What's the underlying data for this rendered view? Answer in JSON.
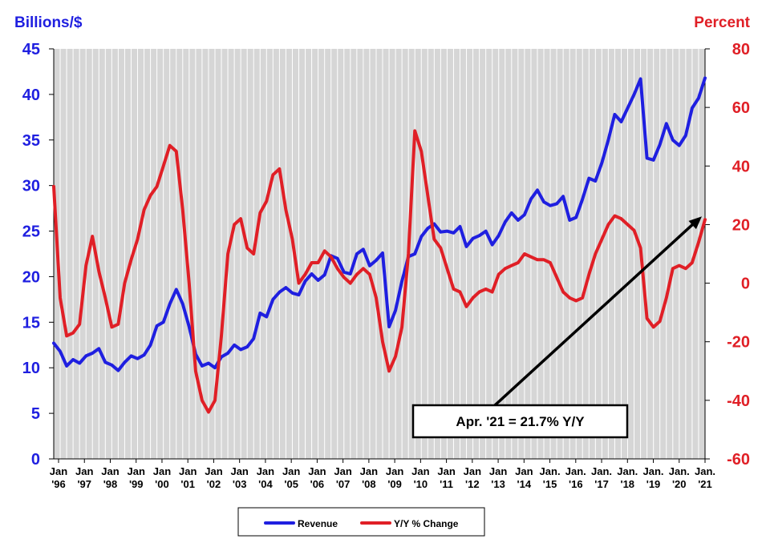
{
  "chart_data": {
    "type": "line",
    "left_axis": {
      "title": "Billions/$",
      "ticks": [
        "0",
        "5",
        "10",
        "15",
        "20",
        "25",
        "30",
        "35",
        "40",
        "45"
      ],
      "range": [
        0,
        45
      ],
      "color": "#1f1fe0"
    },
    "right_axis": {
      "title": "Percent",
      "ticks": [
        "-60",
        "-40",
        "-20",
        "0",
        "20",
        "40",
        "60",
        "80"
      ],
      "range": [
        -60,
        80
      ],
      "color": "#e01f26"
    },
    "x_labels": [
      [
        "Jan",
        "'96"
      ],
      [
        "Jan",
        "'97"
      ],
      [
        "Jan",
        "'98"
      ],
      [
        "Jan",
        "'99"
      ],
      [
        "Jan",
        "'00"
      ],
      [
        "Jan",
        "'01"
      ],
      [
        "Jan",
        "'02"
      ],
      [
        "Jan",
        "'03"
      ],
      [
        "Jan",
        "'04"
      ],
      [
        "Jan",
        "'05"
      ],
      [
        "Jan",
        "'06"
      ],
      [
        "Jan",
        "'07"
      ],
      [
        "Jan",
        "'08"
      ],
      [
        "Jan",
        "'09"
      ],
      [
        "Jan",
        "'10"
      ],
      [
        "Jan",
        "'11"
      ],
      [
        "Jan",
        "'12"
      ],
      [
        "Jan",
        "'13"
      ],
      [
        "Jan",
        "'14"
      ],
      [
        "Jan.",
        "'15"
      ],
      [
        "Jan.",
        "'16"
      ],
      [
        "Jan.",
        "'17"
      ],
      [
        "Jan.",
        "'18"
      ],
      [
        "Jan.",
        "'19"
      ],
      [
        "Jan.",
        "'20"
      ],
      [
        "Jan.",
        "'21"
      ]
    ],
    "x_range": [
      "1996-01",
      "2021-04"
    ],
    "grid": true,
    "legend_position": "bottom-center",
    "series": [
      {
        "name": "Revenue",
        "axis": "left",
        "color": "#1f1fe0",
        "points": [
          [
            "1996-01",
            12.7
          ],
          [
            "1996-04",
            11.8
          ],
          [
            "1996-07",
            10.2
          ],
          [
            "1996-10",
            10.9
          ],
          [
            "1997-01",
            10.5
          ],
          [
            "1997-04",
            11.3
          ],
          [
            "1997-07",
            11.6
          ],
          [
            "1997-10",
            12.1
          ],
          [
            "1998-01",
            10.6
          ],
          [
            "1998-04",
            10.3
          ],
          [
            "1998-07",
            9.7
          ],
          [
            "1998-10",
            10.6
          ],
          [
            "1999-01",
            11.3
          ],
          [
            "1999-04",
            11.0
          ],
          [
            "1999-07",
            11.4
          ],
          [
            "1999-10",
            12.5
          ],
          [
            "2000-01",
            14.6
          ],
          [
            "2000-04",
            15.0
          ],
          [
            "2000-07",
            17.0
          ],
          [
            "2000-10",
            18.6
          ],
          [
            "2001-01",
            17.0
          ],
          [
            "2001-04",
            14.5
          ],
          [
            "2001-07",
            11.5
          ],
          [
            "2001-10",
            10.2
          ],
          [
            "2002-01",
            10.5
          ],
          [
            "2002-04",
            10.0
          ],
          [
            "2002-07",
            11.2
          ],
          [
            "2002-10",
            11.6
          ],
          [
            "2003-01",
            12.5
          ],
          [
            "2003-04",
            12.0
          ],
          [
            "2003-07",
            12.3
          ],
          [
            "2003-10",
            13.2
          ],
          [
            "2004-01",
            16.0
          ],
          [
            "2004-04",
            15.6
          ],
          [
            "2004-07",
            17.5
          ],
          [
            "2004-10",
            18.3
          ],
          [
            "2005-01",
            18.8
          ],
          [
            "2005-04",
            18.2
          ],
          [
            "2005-07",
            18.0
          ],
          [
            "2005-10",
            19.5
          ],
          [
            "2006-01",
            20.3
          ],
          [
            "2006-04",
            19.6
          ],
          [
            "2006-07",
            20.2
          ],
          [
            "2006-10",
            22.3
          ],
          [
            "2007-01",
            22.0
          ],
          [
            "2007-04",
            20.5
          ],
          [
            "2007-07",
            20.3
          ],
          [
            "2007-10",
            22.5
          ],
          [
            "2008-01",
            23.0
          ],
          [
            "2008-04",
            21.2
          ],
          [
            "2008-07",
            21.8
          ],
          [
            "2008-10",
            22.6
          ],
          [
            "2009-01",
            14.5
          ],
          [
            "2009-04",
            16.3
          ],
          [
            "2009-07",
            19.5
          ],
          [
            "2009-10",
            22.2
          ],
          [
            "2010-01",
            22.5
          ],
          [
            "2010-04",
            24.4
          ],
          [
            "2010-07",
            25.3
          ],
          [
            "2010-10",
            25.8
          ],
          [
            "2011-01",
            24.9
          ],
          [
            "2011-04",
            25.0
          ],
          [
            "2011-07",
            24.8
          ],
          [
            "2011-10",
            25.5
          ],
          [
            "2012-01",
            23.3
          ],
          [
            "2012-04",
            24.2
          ],
          [
            "2012-07",
            24.5
          ],
          [
            "2012-10",
            25.0
          ],
          [
            "2013-01",
            23.5
          ],
          [
            "2013-04",
            24.5
          ],
          [
            "2013-07",
            26.0
          ],
          [
            "2013-10",
            27.0
          ],
          [
            "2014-01",
            26.2
          ],
          [
            "2014-04",
            26.8
          ],
          [
            "2014-07",
            28.5
          ],
          [
            "2014-10",
            29.5
          ],
          [
            "2015-01",
            28.2
          ],
          [
            "2015-04",
            27.8
          ],
          [
            "2015-07",
            28.0
          ],
          [
            "2015-10",
            28.8
          ],
          [
            "2016-01",
            26.2
          ],
          [
            "2016-04",
            26.5
          ],
          [
            "2016-07",
            28.5
          ],
          [
            "2016-10",
            30.8
          ],
          [
            "2017-01",
            30.5
          ],
          [
            "2017-04",
            32.5
          ],
          [
            "2017-07",
            35.0
          ],
          [
            "2017-10",
            37.8
          ],
          [
            "2018-01",
            37.0
          ],
          [
            "2018-04",
            38.5
          ],
          [
            "2018-07",
            40.0
          ],
          [
            "2018-10",
            41.7
          ],
          [
            "2019-01",
            33.0
          ],
          [
            "2019-04",
            32.8
          ],
          [
            "2019-07",
            34.5
          ],
          [
            "2019-10",
            36.8
          ],
          [
            "2020-01",
            35.0
          ],
          [
            "2020-04",
            34.4
          ],
          [
            "2020-07",
            35.5
          ],
          [
            "2020-10",
            38.5
          ],
          [
            "2021-01",
            39.6
          ],
          [
            "2021-04",
            41.8
          ]
        ]
      },
      {
        "name": "Y/Y % Change",
        "axis": "right",
        "color": "#e01f26",
        "points": [
          [
            "1996-01",
            33
          ],
          [
            "1996-04",
            -5
          ],
          [
            "1996-07",
            -18
          ],
          [
            "1996-10",
            -17
          ],
          [
            "1997-01",
            -14
          ],
          [
            "1997-04",
            6
          ],
          [
            "1997-07",
            16
          ],
          [
            "1997-10",
            4
          ],
          [
            "1998-01",
            -5
          ],
          [
            "1998-04",
            -15
          ],
          [
            "1998-07",
            -14
          ],
          [
            "1998-10",
            0
          ],
          [
            "1999-01",
            8
          ],
          [
            "1999-04",
            15
          ],
          [
            "1999-07",
            25
          ],
          [
            "1999-10",
            30
          ],
          [
            "2000-01",
            33
          ],
          [
            "2000-04",
            40
          ],
          [
            "2000-07",
            47
          ],
          [
            "2000-10",
            45
          ],
          [
            "2001-01",
            25
          ],
          [
            "2001-04",
            0
          ],
          [
            "2001-07",
            -30
          ],
          [
            "2001-10",
            -40
          ],
          [
            "2002-01",
            -44
          ],
          [
            "2002-04",
            -40
          ],
          [
            "2002-07",
            -18
          ],
          [
            "2002-10",
            10
          ],
          [
            "2003-01",
            20
          ],
          [
            "2003-04",
            22
          ],
          [
            "2003-07",
            12
          ],
          [
            "2003-10",
            10
          ],
          [
            "2004-01",
            24
          ],
          [
            "2004-04",
            28
          ],
          [
            "2004-07",
            37
          ],
          [
            "2004-10",
            39
          ],
          [
            "2005-01",
            25
          ],
          [
            "2005-04",
            15
          ],
          [
            "2005-07",
            0
          ],
          [
            "2005-10",
            3
          ],
          [
            "2006-01",
            7
          ],
          [
            "2006-04",
            7
          ],
          [
            "2006-07",
            11
          ],
          [
            "2006-10",
            9
          ],
          [
            "2007-01",
            5
          ],
          [
            "2007-04",
            2
          ],
          [
            "2007-07",
            0
          ],
          [
            "2007-10",
            3
          ],
          [
            "2008-01",
            5
          ],
          [
            "2008-04",
            3
          ],
          [
            "2008-07",
            -5
          ],
          [
            "2008-10",
            -20
          ],
          [
            "2009-01",
            -30
          ],
          [
            "2009-04",
            -25
          ],
          [
            "2009-07",
            -15
          ],
          [
            "2009-10",
            10
          ],
          [
            "2010-01",
            52
          ],
          [
            "2010-04",
            45
          ],
          [
            "2010-07",
            30
          ],
          [
            "2010-10",
            15
          ],
          [
            "2011-01",
            12
          ],
          [
            "2011-04",
            5
          ],
          [
            "2011-07",
            -2
          ],
          [
            "2011-10",
            -3
          ],
          [
            "2012-01",
            -8
          ],
          [
            "2012-04",
            -5
          ],
          [
            "2012-07",
            -3
          ],
          [
            "2012-10",
            -2
          ],
          [
            "2013-01",
            -3
          ],
          [
            "2013-04",
            3
          ],
          [
            "2013-07",
            5
          ],
          [
            "2013-10",
            6
          ],
          [
            "2014-01",
            7
          ],
          [
            "2014-04",
            10
          ],
          [
            "2014-07",
            9
          ],
          [
            "2014-10",
            8
          ],
          [
            "2015-01",
            8
          ],
          [
            "2015-04",
            7
          ],
          [
            "2015-07",
            2
          ],
          [
            "2015-10",
            -3
          ],
          [
            "2016-01",
            -5
          ],
          [
            "2016-04",
            -6
          ],
          [
            "2016-07",
            -5
          ],
          [
            "2016-10",
            3
          ],
          [
            "2017-01",
            10
          ],
          [
            "2017-04",
            15
          ],
          [
            "2017-07",
            20
          ],
          [
            "2017-10",
            23
          ],
          [
            "2018-01",
            22
          ],
          [
            "2018-04",
            20
          ],
          [
            "2018-07",
            18
          ],
          [
            "2018-10",
            12
          ],
          [
            "2019-01",
            -12
          ],
          [
            "2019-04",
            -15
          ],
          [
            "2019-07",
            -13
          ],
          [
            "2019-10",
            -5
          ],
          [
            "2020-01",
            5
          ],
          [
            "2020-04",
            6
          ],
          [
            "2020-07",
            5
          ],
          [
            "2020-10",
            7
          ],
          [
            "2021-01",
            14
          ],
          [
            "2021-04",
            21.7
          ]
        ]
      }
    ],
    "annotation": {
      "text": "Apr. '21 = 21.7% Y/Y",
      "target": [
        "2021-04",
        21.7
      ],
      "target_axis": "right"
    }
  }
}
